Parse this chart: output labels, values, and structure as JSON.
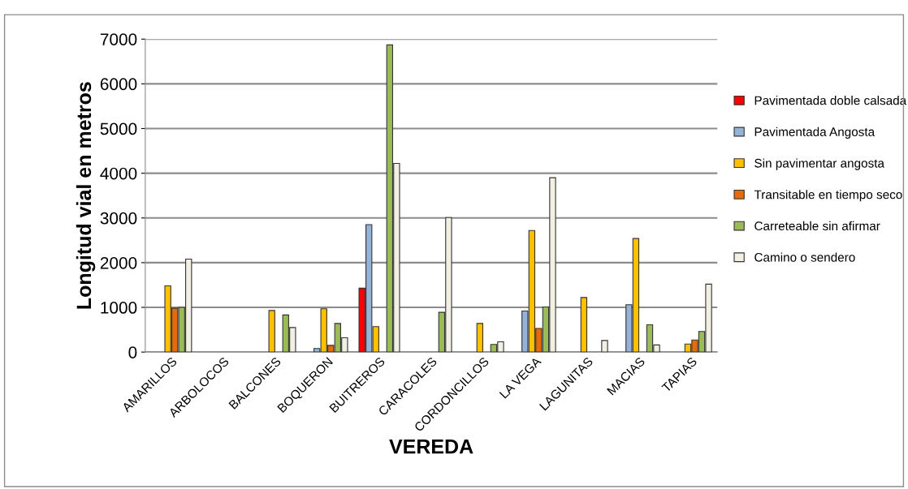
{
  "chart_data": {
    "type": "bar",
    "xlabel": "VEREDA",
    "ylabel": "Longitud vial en metros",
    "categories": [
      "AMARILLOS",
      "ARBOLOCOS",
      "BALCONES",
      "BOQUERON",
      "BUITREROS",
      "CARACOLES",
      "CORDONCILLOS",
      "LA VEGA",
      "LAGUNITAS",
      "MACIAS",
      "TAPIAS"
    ],
    "series": [
      {
        "name": "Pavimentada doble calsada",
        "color": "#ff0000",
        "values": [
          null,
          null,
          null,
          null,
          1430,
          null,
          null,
          null,
          null,
          null,
          null
        ]
      },
      {
        "name": "Pavimentada Angosta",
        "color": "#95b3d7",
        "values": [
          null,
          null,
          null,
          80,
          2850,
          null,
          null,
          920,
          null,
          1060,
          null
        ]
      },
      {
        "name": "Sin pavimentar angosta",
        "color": "#ffc000",
        "values": [
          1480,
          null,
          930,
          970,
          570,
          null,
          640,
          2720,
          1220,
          2540,
          180
        ]
      },
      {
        "name": "Transitable en tiempo seco",
        "color": "#e46c0a",
        "values": [
          980,
          null,
          null,
          150,
          null,
          null,
          null,
          530,
          null,
          null,
          270
        ]
      },
      {
        "name": "Carreteable sin afirmar",
        "color": "#9bbb59",
        "values": [
          1000,
          null,
          830,
          640,
          6870,
          890,
          170,
          1010,
          null,
          610,
          460
        ]
      },
      {
        "name": "Camino o sendero",
        "color": "#f2efe3",
        "values": [
          2080,
          null,
          550,
          320,
          4220,
          3010,
          230,
          3900,
          260,
          160,
          1520
        ]
      }
    ],
    "ylim": [
      0,
      7000
    ],
    "yticks": [
      0,
      1000,
      2000,
      3000,
      4000,
      5000,
      6000,
      7000
    ],
    "grid": "y",
    "legend": "right"
  }
}
